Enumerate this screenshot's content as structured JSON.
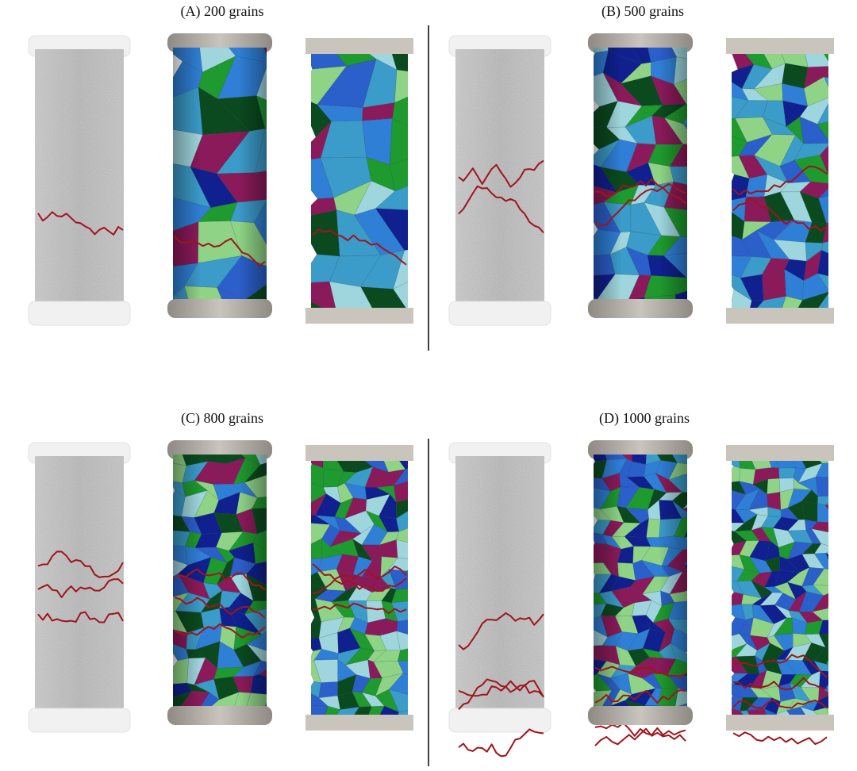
{
  "panels": [
    {
      "title": "(A) 200 grains"
    },
    {
      "title": "(B) 500 grains"
    },
    {
      "title": "(C) 800 grains"
    },
    {
      "title": "(D) 1000 grains"
    }
  ]
}
